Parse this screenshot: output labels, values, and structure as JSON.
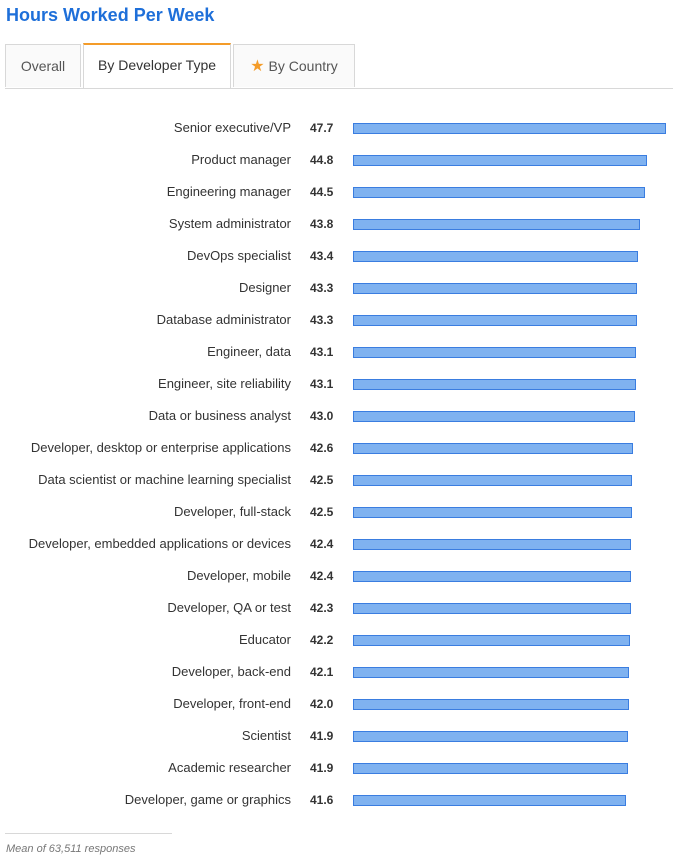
{
  "title": "Hours Worked Per Week",
  "tabs": [
    {
      "label": "Overall",
      "active": false,
      "icon": ""
    },
    {
      "label": "By Developer Type",
      "active": true,
      "icon": ""
    },
    {
      "label": "By Country",
      "active": false,
      "icon": "star-icon"
    }
  ],
  "colors": {
    "title": "#1e6fd9",
    "bar_fill": "#7fb2f0",
    "bar_border": "#3a7de0",
    "tab_accent": "#f49c29"
  },
  "chart_data": {
    "type": "bar",
    "orientation": "horizontal",
    "categories": [
      "Senior executive/VP",
      "Product manager",
      "Engineering manager",
      "System administrator",
      "DevOps specialist",
      "Designer",
      "Database administrator",
      "Engineer, data",
      "Engineer, site reliability",
      "Data or business analyst",
      "Developer, desktop or enterprise applications",
      "Data scientist or machine learning specialist",
      "Developer, full-stack",
      "Developer, embedded applications or devices",
      "Developer, mobile",
      "Developer, QA or test",
      "Educator",
      "Developer, back-end",
      "Developer, front-end",
      "Scientist",
      "Academic researcher",
      "Developer, game or graphics"
    ],
    "values": [
      47.7,
      44.8,
      44.5,
      43.8,
      43.4,
      43.3,
      43.3,
      43.1,
      43.1,
      43.0,
      42.6,
      42.5,
      42.5,
      42.4,
      42.4,
      42.3,
      42.2,
      42.1,
      42.0,
      41.9,
      41.9,
      41.6
    ],
    "value_labels": [
      "47.7",
      "44.8",
      "44.5",
      "43.8",
      "43.4",
      "43.3",
      "43.3",
      "43.1",
      "43.1",
      "43.0",
      "42.6",
      "42.5",
      "42.5",
      "42.4",
      "42.4",
      "42.3",
      "42.2",
      "42.1",
      "42.0",
      "41.9",
      "41.9",
      "41.6"
    ],
    "xlim": [
      0,
      47.7
    ],
    "grid": false,
    "legend": "none"
  },
  "footer": "Mean of 63,511 responses"
}
